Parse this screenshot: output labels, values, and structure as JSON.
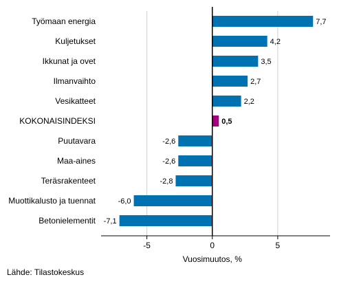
{
  "chart_data": {
    "type": "bar",
    "orientation": "horizontal",
    "categories": [
      "Työmaan energia",
      "Kuljetukset",
      "Ikkunat ja ovet",
      "Ilmanvaihto",
      "Vesikatteet",
      "KOKONAISINDEKSI",
      "Puutavara",
      "Maa-aines",
      "Teräsrakenteet",
      "Muottikalusto ja tuennat",
      "Betonielementit"
    ],
    "values": [
      7.7,
      4.2,
      3.5,
      2.7,
      2.2,
      0.5,
      -2.6,
      -2.6,
      -2.8,
      -6.0,
      -7.1
    ],
    "value_labels": [
      "7,7",
      "4,2",
      "3,5",
      "2,7",
      "2,2",
      "0,5",
      "-2,6",
      "-2,6",
      "-2,8",
      "-6,0",
      "-7,1"
    ],
    "highlight_category": "KOKONAISINDEKSI",
    "xlabel": "Vuosimuutos, %",
    "xlim": [
      -8.5,
      9
    ],
    "xticks": [
      -5,
      0,
      5
    ],
    "xtick_labels": [
      "-5",
      "0",
      "5"
    ],
    "grid": "vertical",
    "colors": {
      "bar": "#0072b2",
      "highlight": "#a4007e",
      "grid": "#d0d0d0",
      "zero_line": "#000000"
    }
  },
  "source": "Lähde: Tilastokeskus"
}
